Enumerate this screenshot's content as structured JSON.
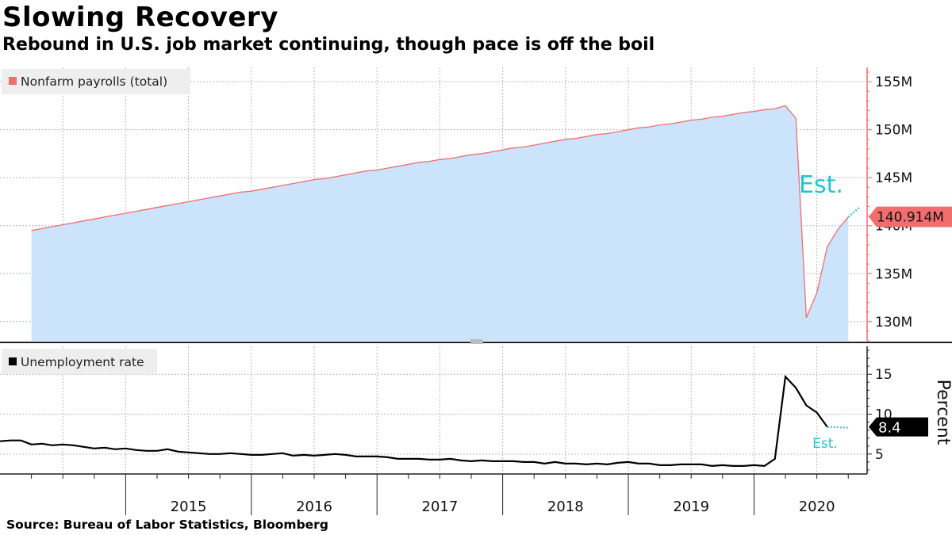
{
  "title": "Slowing Recovery",
  "subtitle": "Rebound in U.S. job market continuing, though pace is off the boil",
  "source": "Source: Bureau of Labor Statistics, Bloomberg",
  "colors": {
    "payroll_line": "#f26d6d",
    "payroll_fill": "#cce3fc",
    "estimate": "#1cc7d0",
    "unemp_line": "#000000",
    "legend_bg": "#eeeeee",
    "grid": "#b8b8b8"
  },
  "chart_data": [
    {
      "type": "area",
      "title": "Nonfarm payrolls (total)",
      "legend": "Nonfarm payrolls (total)",
      "legend_position": "top-left",
      "ylabel": "",
      "y_tick_labels": [
        "130M",
        "135M",
        "140M",
        "145M",
        "150M",
        "155M"
      ],
      "y_ticks": [
        130,
        135,
        140,
        145,
        150,
        155
      ],
      "ylim": [
        128,
        156.5
      ],
      "last_value_label": "140.914M",
      "last_value": 140.914,
      "annotation": "Est.",
      "estimate_target": 141.9,
      "x_start": 2014.25,
      "x_step_months": 1,
      "series": [
        {
          "name": "Nonfarm payrolls (total)",
          "values": [
            139.5,
            139.7,
            139.9,
            140.1,
            140.3,
            140.5,
            140.7,
            140.9,
            141.1,
            141.3,
            141.5,
            141.7,
            141.9,
            142.1,
            142.3,
            142.5,
            142.7,
            142.9,
            143.1,
            143.3,
            143.5,
            143.6,
            143.8,
            144.0,
            144.2,
            144.4,
            144.6,
            144.8,
            144.9,
            145.1,
            145.3,
            145.5,
            145.7,
            145.8,
            146.0,
            146.2,
            146.4,
            146.6,
            146.7,
            146.9,
            147.0,
            147.2,
            147.4,
            147.5,
            147.7,
            147.9,
            148.1,
            148.2,
            148.4,
            148.6,
            148.8,
            149.0,
            149.1,
            149.3,
            149.5,
            149.6,
            149.8,
            150.0,
            150.2,
            150.3,
            150.5,
            150.6,
            150.8,
            151.0,
            151.1,
            151.3,
            151.4,
            151.6,
            151.8,
            151.9,
            152.1,
            152.2,
            152.5,
            151.2,
            130.4,
            133.0,
            137.8,
            139.6,
            140.9
          ]
        }
      ]
    },
    {
      "type": "line",
      "title": "Unemployment rate",
      "legend": "Unemployment rate",
      "legend_position": "top-left",
      "ylabel": "Percent",
      "y_tick_labels": [
        "5",
        "10",
        "15"
      ],
      "y_ticks": [
        5,
        10,
        15
      ],
      "ylim": [
        2.5,
        18.5
      ],
      "last_value_label": "8.4",
      "last_value": 8.4,
      "annotation": "Est.",
      "estimate_target": 8.3,
      "x_start": 2014.0,
      "x_step_months": 1,
      "x_tick_labels": [
        "2015",
        "2016",
        "2017",
        "2018",
        "2019",
        "2020"
      ],
      "x_ticks": [
        2015,
        2016,
        2017,
        2018,
        2019,
        2020
      ],
      "xlim": [
        2014.0,
        2020.9
      ],
      "series": [
        {
          "name": "Unemployment rate",
          "values": [
            6.6,
            6.7,
            6.7,
            6.2,
            6.3,
            6.1,
            6.2,
            6.1,
            5.9,
            5.7,
            5.8,
            5.6,
            5.7,
            5.5,
            5.4,
            5.4,
            5.6,
            5.3,
            5.2,
            5.1,
            5.0,
            5.0,
            5.1,
            5.0,
            4.9,
            4.9,
            5.0,
            5.1,
            4.8,
            4.9,
            4.8,
            4.9,
            5.0,
            4.9,
            4.7,
            4.7,
            4.7,
            4.6,
            4.4,
            4.4,
            4.4,
            4.3,
            4.3,
            4.4,
            4.2,
            4.1,
            4.2,
            4.1,
            4.1,
            4.1,
            4.0,
            4.0,
            3.8,
            4.0,
            3.8,
            3.8,
            3.7,
            3.8,
            3.7,
            3.9,
            4.0,
            3.8,
            3.8,
            3.6,
            3.6,
            3.7,
            3.7,
            3.7,
            3.5,
            3.6,
            3.5,
            3.5,
            3.6,
            3.5,
            4.4,
            14.7,
            13.3,
            11.1,
            10.2,
            8.4
          ]
        }
      ]
    }
  ]
}
